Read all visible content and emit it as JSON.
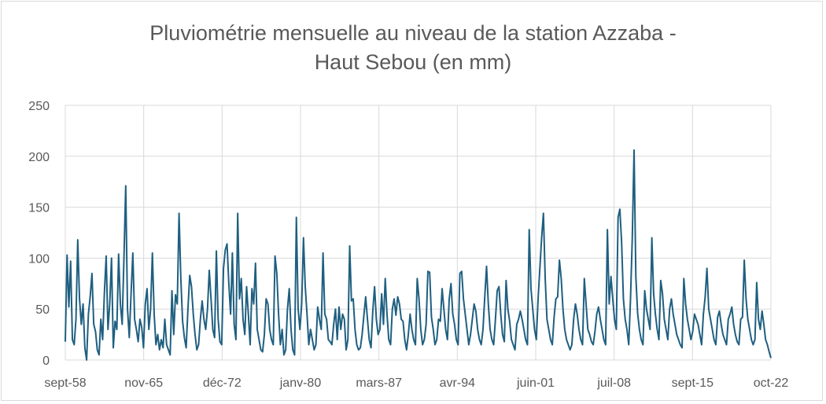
{
  "chart_data": {
    "type": "line",
    "title_lines": [
      "Pluviométrie mensuelle au niveau de la station Azzaba -",
      "Haut Sebou (en mm)"
    ],
    "ylim": [
      0,
      250
    ],
    "yticks": [
      0,
      50,
      100,
      150,
      200,
      250
    ],
    "x_tick_labels": [
      "sept-58",
      "nov-65",
      "déc-72",
      "janv-80",
      "mars-87",
      "avr-94",
      "juin-01",
      "juil-08",
      "sept-15",
      "oct-22"
    ],
    "x_start": "sept-58",
    "x_end": "oct-22",
    "grid": true,
    "colors": {
      "series": "#1f5f80",
      "grid": "#d9d9d9",
      "text": "#595959"
    },
    "series": [
      {
        "values": [
          18,
          103,
          52,
          97,
          20,
          15,
          40,
          118,
          60,
          35,
          55,
          12,
          0,
          45,
          62,
          85,
          35,
          28,
          10,
          5,
          40,
          20,
          66,
          102,
          30,
          55,
          100,
          12,
          38,
          30,
          104,
          55,
          35,
          100,
          171,
          50,
          22,
          65,
          105,
          40,
          30,
          18,
          40,
          32,
          12,
          55,
          70,
          30,
          50,
          105,
          45,
          15,
          25,
          10,
          20,
          12,
          40,
          15,
          10,
          5,
          68,
          25,
          64,
          55,
          144,
          80,
          38,
          22,
          12,
          50,
          83,
          72,
          45,
          25,
          10,
          15,
          40,
          58,
          40,
          30,
          50,
          88,
          60,
          30,
          22,
          107,
          40,
          18,
          15,
          90,
          108,
          114,
          75,
          45,
          105,
          35,
          20,
          144,
          60,
          80,
          40,
          25,
          72,
          45,
          15,
          70,
          55,
          95,
          30,
          20,
          10,
          8,
          25,
          60,
          55,
          30,
          20,
          15,
          102,
          85,
          45,
          15,
          30,
          5,
          10,
          50,
          70,
          30,
          10,
          5,
          140,
          50,
          30,
          55,
          120,
          72,
          45,
          15,
          30,
          20,
          10,
          15,
          52,
          40,
          30,
          105,
          45,
          40,
          20,
          18,
          15,
          35,
          50,
          20,
          52,
          30,
          45,
          40,
          10,
          20,
          112,
          58,
          60,
          30,
          15,
          10,
          12,
          25,
          44,
          62,
          40,
          20,
          12,
          48,
          72,
          40,
          25,
          30,
          65,
          35,
          80,
          45,
          20,
          15,
          50,
          60,
          44,
          62,
          55,
          40,
          38,
          20,
          10,
          25,
          45,
          30,
          20,
          15,
          80,
          60,
          30,
          15,
          20,
          35,
          87,
          86,
          42,
          30,
          15,
          20,
          40,
          38,
          70,
          50,
          30,
          20,
          60,
          75,
          45,
          35,
          20,
          15,
          85,
          87,
          60,
          45,
          30,
          15,
          25,
          40,
          55,
          48,
          30,
          20,
          15,
          30,
          62,
          92,
          55,
          30,
          20,
          15,
          40,
          68,
          72,
          45,
          25,
          18,
          78,
          50,
          38,
          20,
          15,
          10,
          35,
          40,
          48,
          40,
          30,
          20,
          15,
          128,
          70,
          50,
          30,
          20,
          60,
          90,
          120,
          144,
          80,
          40,
          30,
          20,
          15,
          42,
          60,
          62,
          98,
          80,
          50,
          30,
          20,
          15,
          10,
          15,
          40,
          55,
          45,
          30,
          20,
          15,
          80,
          55,
          30,
          25,
          18,
          15,
          28,
          45,
          52,
          40,
          30,
          20,
          15,
          128,
          55,
          82,
          60,
          40,
          30,
          140,
          148,
          115,
          60,
          40,
          30,
          15,
          60,
          120,
          206,
          82,
          46,
          30,
          20,
          15,
          68,
          50,
          40,
          30,
          120,
          65,
          45,
          30,
          20,
          78,
          65,
          40,
          30,
          20,
          50,
          60,
          45,
          35,
          25,
          20,
          15,
          12,
          80,
          55,
          40,
          30,
          20,
          28,
          45,
          40,
          35,
          25,
          15,
          45,
          62,
          90,
          50,
          40,
          30,
          20,
          15,
          42,
          48,
          35,
          25,
          20,
          15,
          40,
          45,
          52,
          35,
          25,
          18,
          15,
          40,
          42,
          98,
          60,
          40,
          30,
          20,
          15,
          20,
          76,
          40,
          30,
          48,
          35,
          20,
          15,
          8,
          2
        ]
      }
    ]
  }
}
